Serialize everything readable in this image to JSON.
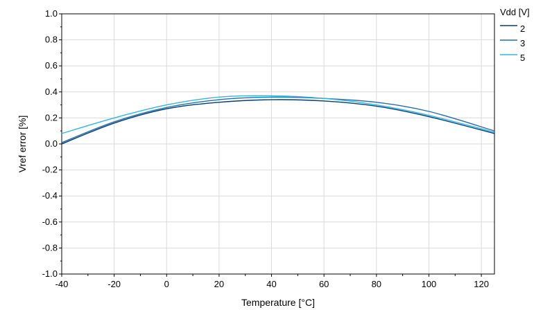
{
  "chart_data": {
    "type": "line",
    "title": "",
    "xlabel": "Temperature [°C]",
    "ylabel": "Vref error [%]",
    "xlim": [
      -40,
      125
    ],
    "ylim": [
      -1.0,
      1.0
    ],
    "xticks": [
      -40,
      -20,
      0,
      20,
      40,
      60,
      80,
      100,
      120
    ],
    "yticks": [
      -1.0,
      -0.8,
      -0.6,
      -0.4,
      -0.2,
      0.0,
      0.2,
      0.4,
      0.6,
      0.8,
      1.0
    ],
    "xtick_labels": [
      "-40",
      "-20",
      "0",
      "20",
      "40",
      "60",
      "80",
      "100",
      "120"
    ],
    "ytick_labels": [
      "-1.0",
      "-0.8",
      "-0.6",
      "-0.4",
      "-0.2",
      "0.0",
      "0.2",
      "0.4",
      "0.6",
      "0.8",
      "1.0"
    ],
    "grid": true,
    "legend": {
      "title": "Vdd [V]",
      "placement": "top-right-outside"
    },
    "x": [
      -40,
      -20,
      0,
      20,
      40,
      60,
      80,
      100,
      125
    ],
    "series": [
      {
        "name": "2",
        "color": "#0b3a66",
        "values": [
          0.0,
          0.16,
          0.27,
          0.32,
          0.34,
          0.33,
          0.29,
          0.21,
          0.08
        ]
      },
      {
        "name": "3",
        "color": "#1f6fb0",
        "values": [
          0.01,
          0.17,
          0.28,
          0.34,
          0.36,
          0.35,
          0.32,
          0.25,
          0.1
        ]
      },
      {
        "name": "5",
        "color": "#2cb5e6",
        "values": [
          0.08,
          0.2,
          0.3,
          0.36,
          0.37,
          0.35,
          0.3,
          0.22,
          0.09
        ]
      }
    ]
  }
}
